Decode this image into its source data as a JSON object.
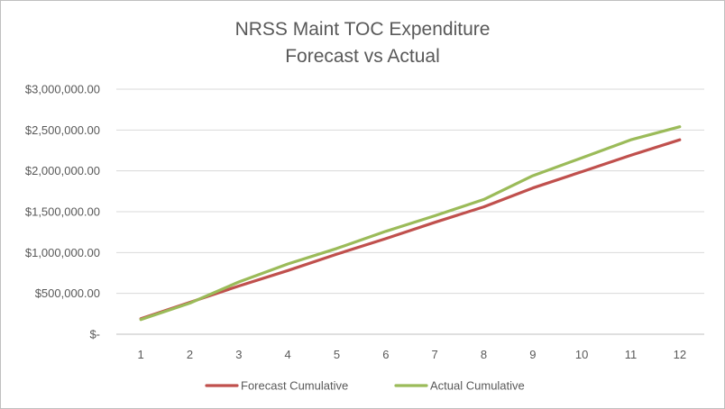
{
  "chart_data": {
    "type": "line",
    "title": "NRSS Maint TOC Expenditure",
    "subtitle": "Forecast vs Actual",
    "xlabel": "",
    "ylabel": "",
    "x": [
      1,
      2,
      3,
      4,
      5,
      6,
      7,
      8,
      9,
      10,
      11,
      12
    ],
    "x_tick_labels": [
      "1",
      "2",
      "3",
      "4",
      "5",
      "6",
      "7",
      "8",
      "9",
      "10",
      "11",
      "12"
    ],
    "ylim": [
      0,
      3000000
    ],
    "y_ticks": [
      0,
      500000,
      1000000,
      1500000,
      2000000,
      2500000,
      3000000
    ],
    "y_tick_labels": [
      "$-",
      "$500,000.00",
      "$1,000,000.00",
      "$1,500,000.00",
      "$2,000,000.00",
      "$2,500,000.00",
      "$3,000,000.00"
    ],
    "grid": true,
    "legend_position": "bottom",
    "series": [
      {
        "name": "Forecast Cumulative",
        "color": "#c0504d",
        "values": [
          190000,
          390000,
          590000,
          780000,
          980000,
          1170000,
          1370000,
          1560000,
          1790000,
          1990000,
          2190000,
          2380000
        ]
      },
      {
        "name": "Actual Cumulative",
        "color": "#9bbb59",
        "values": [
          180000,
          380000,
          640000,
          860000,
          1050000,
          1260000,
          1450000,
          1650000,
          1940000,
          2160000,
          2380000,
          2540000
        ]
      }
    ]
  }
}
